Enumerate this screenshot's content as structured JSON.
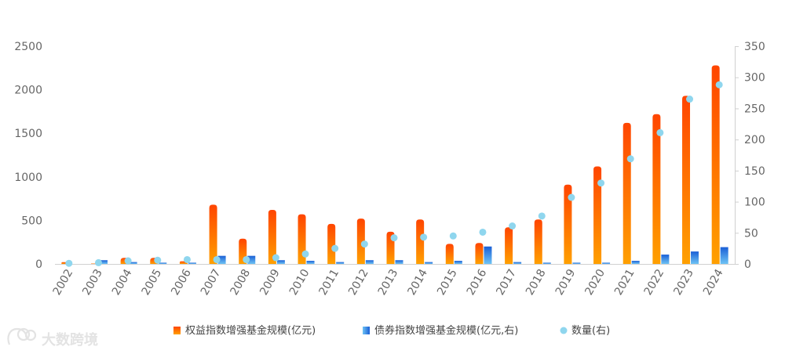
{
  "chart_data": {
    "type": "bar",
    "categories": [
      "2002",
      "2003",
      "2004",
      "2005",
      "2006",
      "2007",
      "2008",
      "2009",
      "2010",
      "2011",
      "2012",
      "2013",
      "2014",
      "2015",
      "2016",
      "2017",
      "2018",
      "2019",
      "2020",
      "2021",
      "2022",
      "2023",
      "2024"
    ],
    "series": [
      {
        "name": "权益指数增强基金规模(亿元)",
        "axis": "left",
        "kind": "bar",
        "color_top": "#ff4500",
        "color_bottom": "#ffa000",
        "values": [
          20,
          5,
          70,
          70,
          30,
          680,
          290,
          620,
          570,
          460,
          520,
          370,
          510,
          230,
          240,
          420,
          510,
          910,
          1120,
          1620,
          1720,
          1930,
          2280
        ]
      },
      {
        "name": "债券指数增强基金规模(亿元,右)",
        "axis": "right",
        "kind": "bar",
        "color_top": "#1a5fd6",
        "color_bottom": "#6ec3f5",
        "values": [
          0,
          6,
          3,
          2,
          2,
          13,
          13,
          6,
          5,
          3,
          6,
          6,
          3,
          5,
          28,
          3,
          2,
          2,
          2,
          5,
          15,
          20,
          27
        ]
      },
      {
        "name": "数量(右)",
        "axis": "right",
        "kind": "scatter",
        "color": "#8fd6ee",
        "values": [
          1,
          2,
          5,
          6,
          7,
          7,
          7,
          10,
          16,
          25,
          32,
          42,
          43,
          45,
          51,
          61,
          77,
          107,
          130,
          169,
          211,
          265,
          288
        ]
      }
    ],
    "y_left": {
      "min": 0,
      "max": 2500,
      "ticks": [
        "0",
        "500",
        "1000",
        "1500",
        "2000",
        "2500"
      ]
    },
    "y_right": {
      "min": 0,
      "max": 350,
      "ticks": [
        "0",
        "50",
        "100",
        "150",
        "200",
        "250",
        "300",
        "350"
      ]
    },
    "grid": false,
    "legend_position": "bottom"
  },
  "watermark": {
    "text": "大数跨境",
    "logo_icon": "elephant-logo-icon"
  }
}
